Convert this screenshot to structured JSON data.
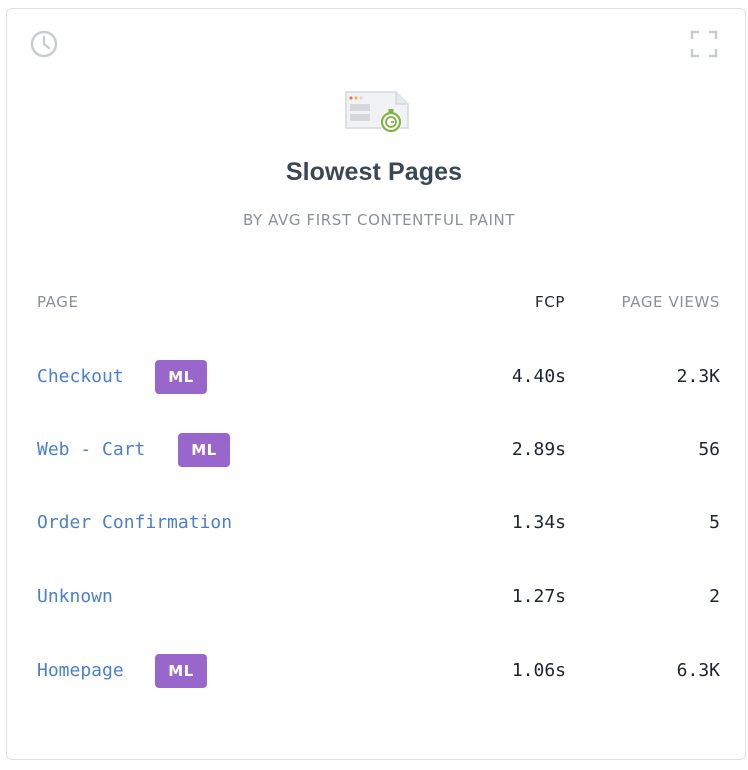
{
  "widget": {
    "title": "Slowest Pages",
    "subtitle": "BY AVG FIRST CONTENTFUL PAINT",
    "icons": [
      "clock-icon",
      "expand-icon",
      "browser-stopwatch-icon"
    ],
    "colors": {
      "link": "#4a7fd0",
      "badge": "#9966cc",
      "accent_green": "#7cb342"
    }
  },
  "table": {
    "headers": {
      "page": "PAGE",
      "fcp": "FCP",
      "views": "PAGE VIEWS"
    },
    "rows": [
      {
        "page": "Checkout",
        "badge": "ML",
        "fcp": "4.40s",
        "views": "2.3K"
      },
      {
        "page": "Web - Cart",
        "badge": "ML",
        "fcp": "2.89s",
        "views": "56"
      },
      {
        "page": "Order Confirmation",
        "badge": "",
        "fcp": "1.34s",
        "views": "5"
      },
      {
        "page": "Unknown",
        "badge": "",
        "fcp": "1.27s",
        "views": "2"
      },
      {
        "page": "Homepage",
        "badge": "ML",
        "fcp": "1.06s",
        "views": "6.3K"
      }
    ]
  }
}
